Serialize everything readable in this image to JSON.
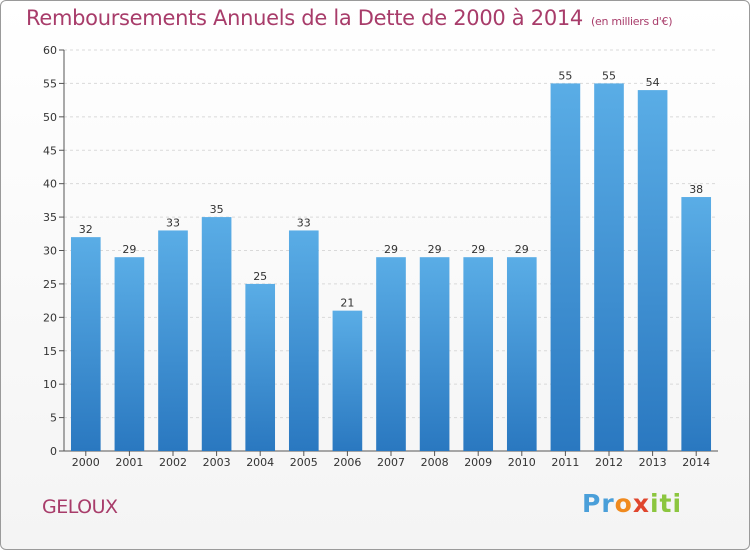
{
  "title": "Remboursements Annuels de la Dette de 2000 à 2014",
  "unit": "(en milliers d'€)",
  "place": "GELOUX",
  "logo": [
    "Pr",
    "o",
    "x",
    "iti"
  ],
  "colors": {
    "bar": "#3f8fd4",
    "title": "#a83c6a"
  },
  "chart_data": {
    "type": "bar",
    "title": "Remboursements Annuels de la Dette de 2000 à 2014",
    "subtitle": "(en milliers d'€)",
    "categories": [
      "2000",
      "2001",
      "2002",
      "2003",
      "2004",
      "2005",
      "2006",
      "2007",
      "2008",
      "2009",
      "2010",
      "2011",
      "2012",
      "2013",
      "2014"
    ],
    "values": [
      32,
      29,
      33,
      35,
      25,
      33,
      21,
      29,
      29,
      29,
      29,
      55,
      55,
      54,
      38
    ],
    "xlabel": "",
    "ylabel": "",
    "ylim": [
      0,
      60
    ],
    "yticks": [
      0,
      5,
      10,
      15,
      20,
      25,
      30,
      35,
      40,
      45,
      50,
      55,
      60
    ],
    "grid": true,
    "legend": "none"
  }
}
